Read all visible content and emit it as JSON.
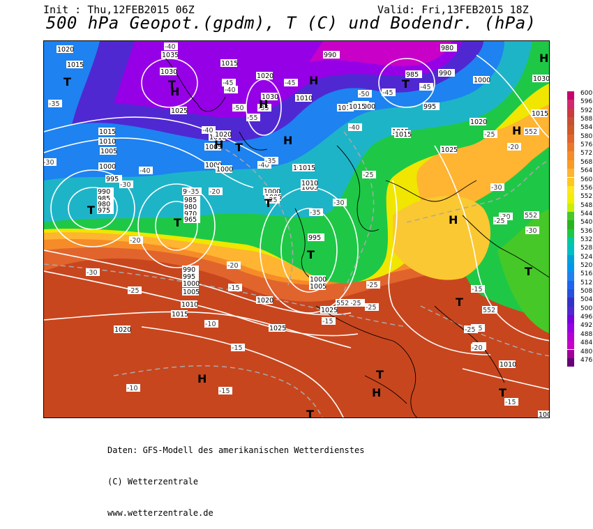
{
  "header": {
    "init": "Init : Thu,12FEB2015 06Z",
    "valid": "Valid: Fri,13FEB2015 18Z",
    "title": "500 hPa Geopot.(gpdm), T (C) und Bodendr. (hPa)"
  },
  "legend": {
    "levels": [
      "600",
      "596",
      "592",
      "588",
      "584",
      "580",
      "576",
      "572",
      "568",
      "564",
      "560",
      "556",
      "552",
      "548",
      "544",
      "540",
      "536",
      "532",
      "528",
      "524",
      "520",
      "516",
      "512",
      "508",
      "504",
      "500",
      "496",
      "492",
      "488",
      "484",
      "480",
      "476"
    ],
    "colors": [
      "#c8006e",
      "#d2286e",
      "#c83c3c",
      "#c85032",
      "#cd5a28",
      "#e1642d",
      "#eb7828",
      "#f58c28",
      "#fa9b23",
      "#ffb432",
      "#ffc81e",
      "#ffe61e",
      "#f0f000",
      "#c8f000",
      "#46c828",
      "#28b41e",
      "#1ec846",
      "#00c8a0",
      "#00bec8",
      "#00a0dc",
      "#0096f0",
      "#1e82f0",
      "#1e64f0",
      "#2850dc",
      "#3232c8",
      "#5028d2",
      "#7800dc",
      "#9600e6",
      "#b400d2",
      "#c800c8",
      "#a00096",
      "#640078"
    ]
  },
  "map": {
    "pressure_labels": [
      "1020",
      "1015",
      "1035",
      "1030",
      "1025",
      "1015",
      "1020",
      "1030",
      "990",
      "1010",
      "1005",
      "1000",
      "985",
      "990",
      "1000",
      "995",
      "980",
      "1015",
      "1010",
      "1005",
      "1000",
      "995",
      "990",
      "985",
      "980",
      "975",
      "1010",
      "1005",
      "1000",
      "990",
      "985",
      "980",
      "970",
      "965",
      "1015",
      "1020",
      "1000",
      "1005",
      "1015",
      "1010",
      "995",
      "1000",
      "1005",
      "990",
      "995",
      "1000",
      "1005",
      "1010",
      "1015",
      "1020",
      "1025",
      "1020",
      "1025",
      "1015",
      "1000",
      "1005",
      "1010",
      "1015",
      "1025",
      "1020",
      "1015",
      "1015",
      "1030",
      "1005",
      "1010"
    ],
    "temp_labels": [
      "-40",
      "-40",
      "-45",
      "-35",
      "-50",
      "-55",
      "-35",
      "-40",
      "-45",
      "-50",
      "-45",
      "-45",
      "-40",
      "-30",
      "-40",
      "-40",
      "-35",
      "-30",
      "-35",
      "-25",
      "-30",
      "-25",
      "-20",
      "-30",
      "-35",
      "-20",
      "-30",
      "-25",
      "-25",
      "-20",
      "-15",
      "-15",
      "-10",
      "-25",
      "-25",
      "-30",
      "-20",
      "-25",
      "-15",
      "-30",
      "-25",
      "-20",
      "-15",
      "-15",
      "-25",
      "-25",
      "-15",
      "-10",
      "-20",
      "-25"
    ],
    "contour_552": [
      "552",
      "552",
      "552",
      "552"
    ],
    "high_symbol": "H",
    "low_symbol": "T"
  },
  "footer": {
    "line1": "Daten: GFS-Modell des amerikanischen Wetterdienstes",
    "line2": "(C) Wetterzentrale",
    "line3": "www.wetterzentrale.de"
  }
}
